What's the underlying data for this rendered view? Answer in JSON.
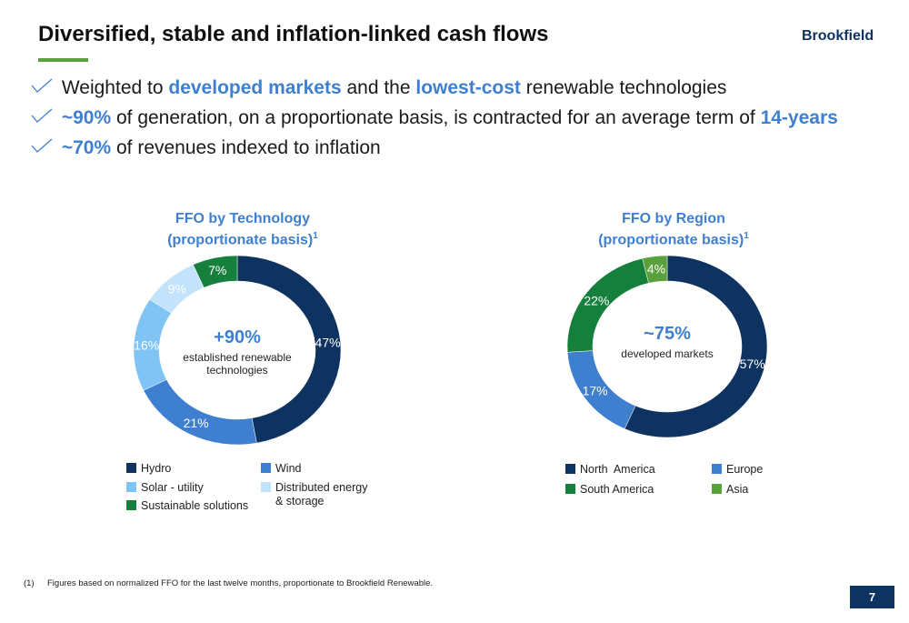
{
  "header": {
    "title": "Diversified, stable and inflation-linked cash flows",
    "logo_text": "Brookfield",
    "accent_rule_color": "#5aa03c"
  },
  "bullets": [
    {
      "parts": [
        "Weighted to ",
        "developed markets",
        " and the ",
        "lowest-cost",
        " renewable technologies"
      ]
    },
    {
      "parts": [
        "~90%",
        " of generation, on a proportionate basis, is contracted for an average term of ",
        "14-years"
      ]
    },
    {
      "parts": [
        "~70%",
        " of revenues indexed to inflation"
      ]
    }
  ],
  "charts": {
    "technology": {
      "title_line1": "FFO by Technology",
      "title_line2": "(proportionate basis)",
      "title_sup": "1",
      "center_value": "+90%",
      "center_label_line1": "established renewable",
      "center_label_line2": "technologies",
      "legend": [
        {
          "label": "Hydro",
          "color": "#0f3360"
        },
        {
          "label": "Wind",
          "color": "#3f7fcf"
        },
        {
          "label": "Solar - utility",
          "color": "#7fc4f5"
        },
        {
          "label": "Distributed energy",
          "label2": "& storage",
          "color": "#c2e3fb"
        },
        {
          "label": "Sustainable solutions",
          "color": "#14803c"
        }
      ]
    },
    "region": {
      "title_line1": "FFO by Region",
      "title_line2": "(proportionate basis)",
      "title_sup": "1",
      "center_value": "~75%",
      "center_label_line1": "developed markets",
      "legend": [
        {
          "label": "North  America",
          "color": "#0f3360"
        },
        {
          "label": "Europe",
          "color": "#3f7fcf"
        },
        {
          "label": "South America",
          "color": "#14803c"
        },
        {
          "label": "Asia",
          "color": "#5aa03c"
        }
      ]
    }
  },
  "chart_data": [
    {
      "type": "pie",
      "categories": [
        "Hydro",
        "Wind",
        "Solar - utility",
        "Distributed energy & storage",
        "Sustainable solutions"
      ],
      "values": [
        47,
        21,
        16,
        9,
        7
      ],
      "labels": [
        "47%",
        "21%",
        "16%",
        "9%",
        "7%"
      ],
      "colors": [
        "#0f3360",
        "#3f7fcf",
        "#7fc4f5",
        "#c2e3fb",
        "#14803c"
      ],
      "label_colors": [
        "#ffffff",
        "#ffffff",
        "#ffffff",
        "#ffffff",
        "#ffffff"
      ],
      "title": "FFO by Technology (proportionate basis)1",
      "legend": "bottom"
    },
    {
      "type": "pie",
      "categories": [
        "North America",
        "Europe",
        "South America",
        "Asia"
      ],
      "values": [
        57,
        17,
        22,
        4
      ],
      "labels": [
        "57%",
        "17%",
        "22%",
        "4%"
      ],
      "colors": [
        "#0f3360",
        "#3f7fcf",
        "#14803c",
        "#5aa03c"
      ],
      "label_colors": [
        "#ffffff",
        "#ffffff",
        "#ffffff",
        "#ffffff"
      ],
      "title": "FFO by Region (proportionate basis)1",
      "legend": "bottom"
    }
  ],
  "footnote": {
    "num": "(1)",
    "text": "Figures based on normalized FFO for the last twelve months, proportionate to Brookfield Renewable."
  },
  "page_number": "7"
}
